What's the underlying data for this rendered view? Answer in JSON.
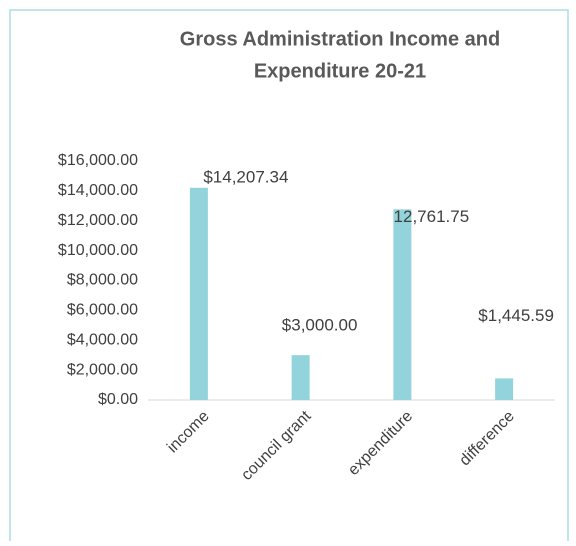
{
  "chart_data": {
    "type": "bar",
    "title": [
      "Gross Administration Income and",
      "Expenditure 20-21"
    ],
    "categories": [
      "income",
      "council grant",
      "expenditure",
      "difference"
    ],
    "values": [
      14207.34,
      3000,
      12761.75,
      1445.59
    ],
    "value_labels": [
      "$14,207.34",
      "$3,000.00",
      "12,761.75",
      "$1,445.59"
    ],
    "color": "#92d3dc",
    "ylim": [
      0,
      16000
    ],
    "yticks": [
      {
        "value": 0,
        "label": "$0.00"
      },
      {
        "value": 2000,
        "label": "$2,000.00"
      },
      {
        "value": 4000,
        "label": "$4,000.00"
      },
      {
        "value": 6000,
        "label": "$6,000.00"
      },
      {
        "value": 8000,
        "label": "$8,000.00"
      },
      {
        "value": 10000,
        "label": "$10,000.00"
      },
      {
        "value": 12000,
        "label": "$12,000.00"
      },
      {
        "value": 14000,
        "label": "$14,000.00"
      },
      {
        "value": 16000,
        "label": "$16,000.00"
      }
    ],
    "grid": false
  }
}
